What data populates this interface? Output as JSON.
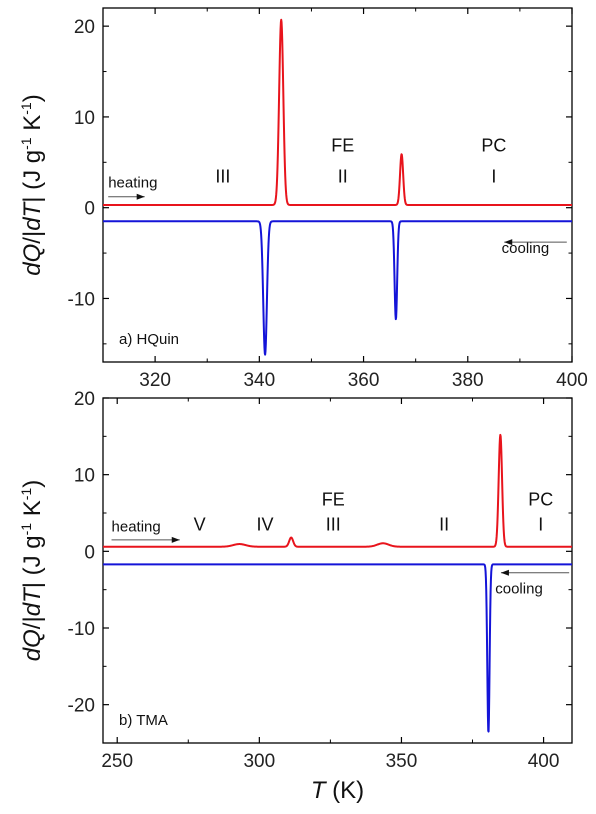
{
  "chart_data": [
    {
      "panel": "a",
      "type": "line",
      "panel_label": "a)  HQuin",
      "xlim": [
        310,
        400
      ],
      "ylim": [
        -17,
        22
      ],
      "xticks": [
        320,
        340,
        360,
        380,
        400
      ],
      "yticks": [
        -10,
        0,
        10,
        20
      ],
      "xlabel": "",
      "ylabel_parts": [
        "dQ",
        "/",
        "|",
        "dT",
        "|  (J g",
        "-1",
        " K",
        "-1",
        ")"
      ],
      "colors": {
        "heating": "#e8141c",
        "cooling": "#1414d8"
      },
      "annotations": [
        {
          "text": "heating",
          "x": 311,
          "y": 2.2,
          "cls": "small"
        },
        {
          "text": "cooling",
          "x": 386.5,
          "y": -5.0,
          "cls": "small"
        },
        {
          "text": "III",
          "x": 333,
          "y": 2.8
        },
        {
          "text": "FE",
          "x": 356,
          "y": 6.2
        },
        {
          "text": "II",
          "x": 356,
          "y": 2.8
        },
        {
          "text": "PC",
          "x": 385,
          "y": 6.2
        },
        {
          "text": "I",
          "x": 385,
          "y": 2.8
        }
      ],
      "arrows": [
        {
          "dir": "right",
          "x1": 311,
          "x2": 318,
          "y": 1.2
        },
        {
          "dir": "left",
          "x1": 399,
          "x2": 387,
          "y": -3.8
        }
      ],
      "series": [
        {
          "role": "heating",
          "baseline": 0.3,
          "peaks": [
            {
              "x": 344.2,
              "h": 20.4,
              "w": 0.4
            },
            {
              "x": 367.3,
              "h": 5.6,
              "w": 0.3
            }
          ]
        },
        {
          "role": "cooling",
          "baseline": -1.5,
          "peaks": [
            {
              "x": 341.1,
              "h": -14.7,
              "w": 0.35
            },
            {
              "x": 366.2,
              "h": -10.8,
              "w": 0.25
            }
          ]
        }
      ]
    },
    {
      "panel": "b",
      "type": "line",
      "panel_label": "b)  TMA",
      "xlim": [
        245,
        410
      ],
      "ylim": [
        -25,
        20
      ],
      "xticks": [
        250,
        300,
        350,
        400
      ],
      "yticks": [
        -20,
        -10,
        0,
        10,
        20
      ],
      "xlabel_parts": [
        "T",
        " (K)"
      ],
      "ylabel_parts": [
        "dQ",
        "/",
        "|",
        "dT",
        "|  (J g",
        "-1",
        " K",
        "-1",
        ")"
      ],
      "colors": {
        "heating": "#e8141c",
        "cooling": "#1414d8"
      },
      "annotations": [
        {
          "text": "heating",
          "x": 248,
          "y": 2.6,
          "cls": "small"
        },
        {
          "text": "cooling",
          "x": 383,
          "y": -5.5,
          "cls": "small"
        },
        {
          "text": "V",
          "x": 279,
          "y": 2.7
        },
        {
          "text": "IV",
          "x": 302,
          "y": 2.7
        },
        {
          "text": "FE",
          "x": 326,
          "y": 6.0
        },
        {
          "text": "III",
          "x": 326,
          "y": 2.7
        },
        {
          "text": "II",
          "x": 365,
          "y": 2.7
        },
        {
          "text": "PC",
          "x": 399,
          "y": 6.0
        },
        {
          "text": "I",
          "x": 399,
          "y": 2.7
        }
      ],
      "arrows": [
        {
          "dir": "right",
          "x1": 248,
          "x2": 272,
          "y": 1.5
        },
        {
          "dir": "left",
          "x1": 409,
          "x2": 385,
          "y": -2.8
        }
      ],
      "series": [
        {
          "role": "heating",
          "baseline": 0.6,
          "peaks": [
            {
              "x": 293,
              "h": 0.35,
              "w": 2.2
            },
            {
              "x": 311.2,
              "h": 1.2,
              "w": 0.7
            },
            {
              "x": 343.5,
              "h": 0.45,
              "w": 2.0
            },
            {
              "x": 384.8,
              "h": 14.6,
              "w": 0.6
            }
          ]
        },
        {
          "role": "cooling",
          "baseline": -1.7,
          "peaks": [
            {
              "x": 380.6,
              "h": -22.0,
              "w": 0.4
            }
          ]
        }
      ]
    }
  ]
}
